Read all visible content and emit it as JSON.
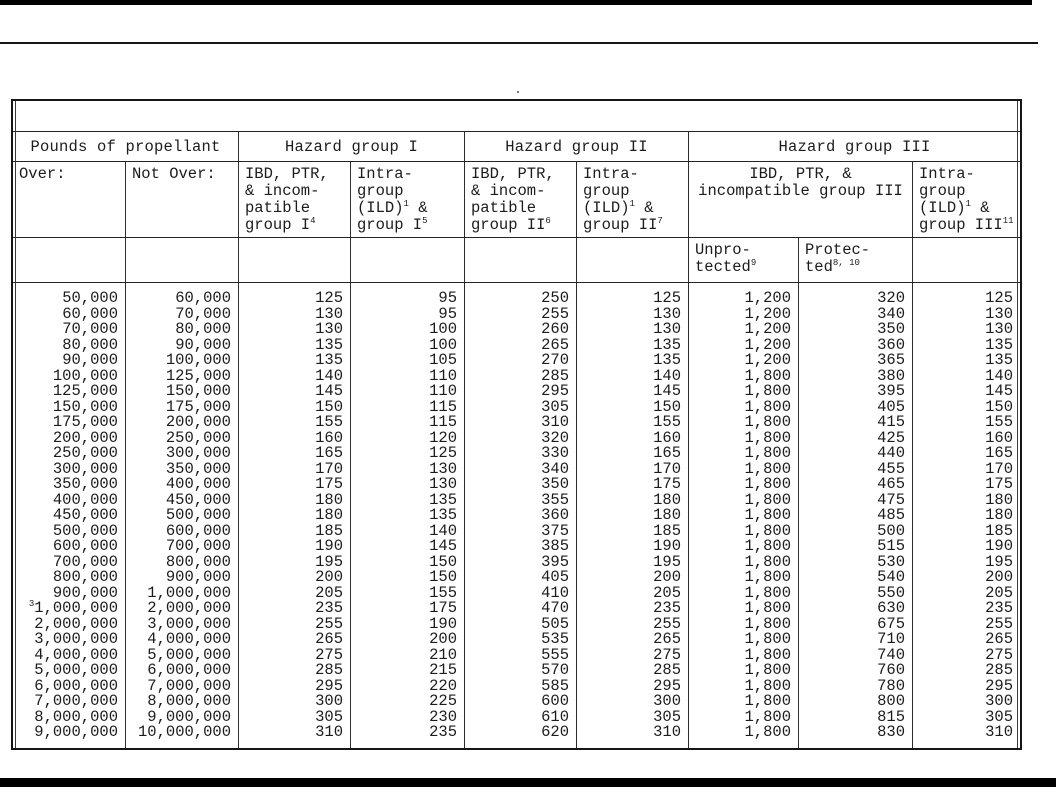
{
  "artifacts": {
    "top_left_mark": "'",
    "stray_mark": "'"
  },
  "table": {
    "group_headers": [
      {
        "label": "Pounds of propellant",
        "span": 2
      },
      {
        "label": "Hazard group I",
        "span": 2
      },
      {
        "label": "Hazard group II",
        "span": 2
      },
      {
        "label": "Hazard group III",
        "span": 3
      }
    ],
    "col_headers": [
      {
        "lines": [
          "Over:"
        ],
        "span": 1
      },
      {
        "lines": [
          "Not Over:"
        ],
        "span": 1
      },
      {
        "lines": [
          "IBD, PTR,",
          "& incom-",
          "patible",
          "group I^{4}"
        ],
        "span": 1
      },
      {
        "lines": [
          "Intra-",
          "group",
          "(ILD)^{1} &",
          "group I^{5}"
        ],
        "span": 1
      },
      {
        "lines": [
          "IBD, PTR,",
          "& incom-",
          "patible",
          "group II^{6}"
        ],
        "span": 1
      },
      {
        "lines": [
          "Intra-",
          "group",
          "(ILD)^{1} &",
          "group II^{7}"
        ],
        "span": 1
      },
      {
        "lines": [
          "IBD, PTR, &",
          "incompatible group III"
        ],
        "span": 2,
        "align": "center"
      },
      {
        "lines": [
          "Intra-",
          "group",
          "(ILD)^{1} &",
          "group III^{11}"
        ],
        "span": 1
      }
    ],
    "sub_headers": [
      {
        "lines": []
      },
      {
        "lines": []
      },
      {
        "lines": []
      },
      {
        "lines": []
      },
      {
        "lines": []
      },
      {
        "lines": []
      },
      {
        "lines": [
          "Unpro-",
          "tected^{9}"
        ]
      },
      {
        "lines": [
          "Protec-",
          "ted^{8, 10}"
        ]
      },
      {
        "lines": []
      }
    ],
    "rows": [
      [
        "50,000",
        "60,000",
        "125",
        "95",
        "250",
        "125",
        "1,200",
        "320",
        "125"
      ],
      [
        "60,000",
        "70,000",
        "130",
        "95",
        "255",
        "130",
        "1,200",
        "340",
        "130"
      ],
      [
        "70,000",
        "80,000",
        "130",
        "100",
        "260",
        "130",
        "1,200",
        "350",
        "130"
      ],
      [
        "80,000",
        "90,000",
        "135",
        "100",
        "265",
        "135",
        "1,200",
        "360",
        "135"
      ],
      [
        "90,000",
        "100,000",
        "135",
        "105",
        "270",
        "135",
        "1,200",
        "365",
        "135"
      ],
      [
        "100,000",
        "125,000",
        "140",
        "110",
        "285",
        "140",
        "1,800",
        "380",
        "140"
      ],
      [
        "125,000",
        "150,000",
        "145",
        "110",
        "295",
        "145",
        "1,800",
        "395",
        "145"
      ],
      [
        "150,000",
        "175,000",
        "150",
        "115",
        "305",
        "150",
        "1,800",
        "405",
        "150"
      ],
      [
        "175,000",
        "200,000",
        "155",
        "115",
        "310",
        "155",
        "1,800",
        "415",
        "155"
      ],
      [
        "200,000",
        "250,000",
        "160",
        "120",
        "320",
        "160",
        "1,800",
        "425",
        "160"
      ],
      [
        "250,000",
        "300,000",
        "165",
        "125",
        "330",
        "165",
        "1,800",
        "440",
        "165"
      ],
      [
        "300,000",
        "350,000",
        "170",
        "130",
        "340",
        "170",
        "1,800",
        "455",
        "170"
      ],
      [
        "350,000",
        "400,000",
        "175",
        "130",
        "350",
        "175",
        "1,800",
        "465",
        "175"
      ],
      [
        "400,000",
        "450,000",
        "180",
        "135",
        "355",
        "180",
        "1,800",
        "475",
        "180"
      ],
      [
        "450,000",
        "500,000",
        "180",
        "135",
        "360",
        "180",
        "1,800",
        "485",
        "180"
      ],
      [
        "500,000",
        "600,000",
        "185",
        "140",
        "375",
        "185",
        "1,800",
        "500",
        "185"
      ],
      [
        "600,000",
        "700,000",
        "190",
        "145",
        "385",
        "190",
        "1,800",
        "515",
        "190"
      ],
      [
        "700,000",
        "800,000",
        "195",
        "150",
        "395",
        "195",
        "1,800",
        "530",
        "195"
      ],
      [
        "800,000",
        "900,000",
        "200",
        "150",
        "405",
        "200",
        "1,800",
        "540",
        "200"
      ],
      [
        "900,000",
        "1,000,000",
        "205",
        "155",
        "410",
        "205",
        "1,800",
        "550",
        "205"
      ],
      [
        "^{3}1,000,000",
        "2,000,000",
        "235",
        "175",
        "470",
        "235",
        "1,800",
        "630",
        "235"
      ],
      [
        "2,000,000",
        "3,000,000",
        "255",
        "190",
        "505",
        "255",
        "1,800",
        "675",
        "255"
      ],
      [
        "3,000,000",
        "4,000,000",
        "265",
        "200",
        "535",
        "265",
        "1,800",
        "710",
        "265"
      ],
      [
        "4,000,000",
        "5,000,000",
        "275",
        "210",
        "555",
        "275",
        "1,800",
        "740",
        "275"
      ],
      [
        "5,000,000",
        "6,000,000",
        "285",
        "215",
        "570",
        "285",
        "1,800",
        "760",
        "285"
      ],
      [
        "6,000,000",
        "7,000,000",
        "295",
        "220",
        "585",
        "295",
        "1,800",
        "780",
        "295"
      ],
      [
        "7,000,000",
        "8,000,000",
        "300",
        "225",
        "600",
        "300",
        "1,800",
        "800",
        "300"
      ],
      [
        "8,000,000",
        "9,000,000",
        "305",
        "230",
        "610",
        "305",
        "1,800",
        "815",
        "305"
      ],
      [
        "9,000,000",
        "10,000,000",
        "310",
        "235",
        "620",
        "310",
        "1,800",
        "830",
        "310"
      ]
    ]
  }
}
